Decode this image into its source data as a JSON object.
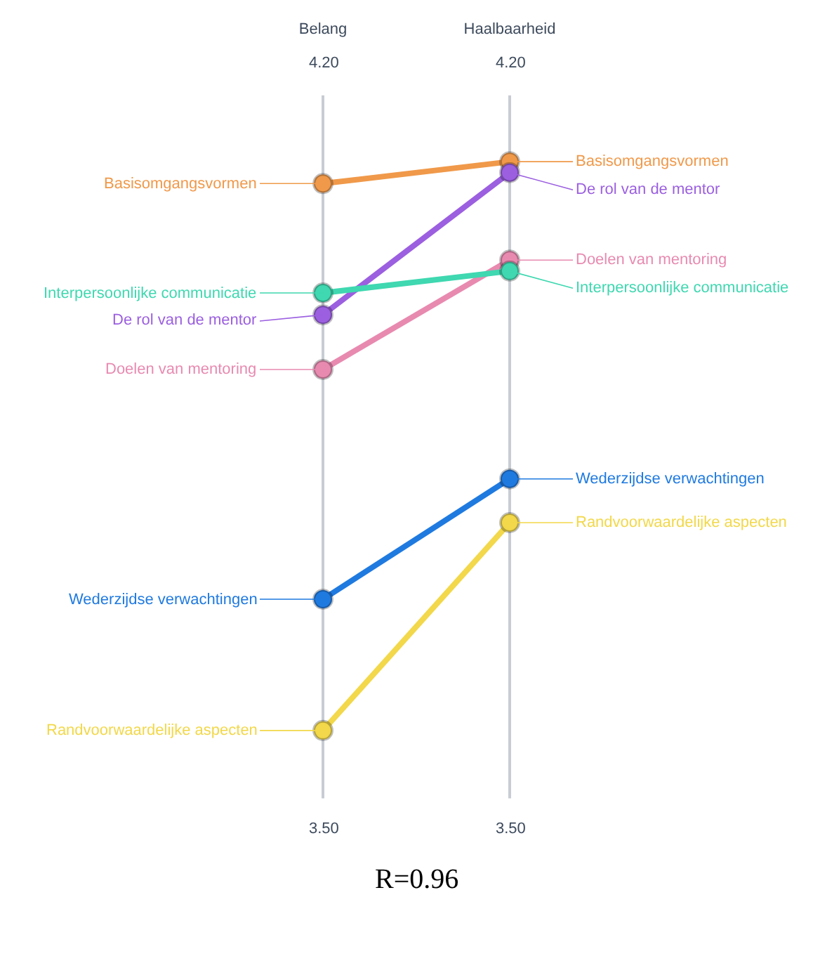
{
  "chart_data": {
    "type": "line",
    "categories": [
      "Belang",
      "Haalbaarheid"
    ],
    "series": [
      {
        "name": "Basisomgangsvormen",
        "color": "#f0994a",
        "values": [
          4.09,
          4.11
        ]
      },
      {
        "name": "De rol van de mentor",
        "color": "#9b5fe0",
        "values": [
          3.97,
          4.1
        ]
      },
      {
        "name": "Doelen van mentoring",
        "color": "#e88ab0",
        "values": [
          3.92,
          4.02
        ]
      },
      {
        "name": "Interpersoonlijke communicatie",
        "color": "#3fd8b0",
        "values": [
          3.99,
          4.01
        ]
      },
      {
        "name": "Wederzijdse verwachtingen",
        "color": "#1f7ae0",
        "values": [
          3.71,
          3.82
        ]
      },
      {
        "name": "Randvoorwaardelijke aspecten",
        "color": "#f2d84a",
        "values": [
          3.59,
          3.78
        ]
      }
    ],
    "ylim": [
      3.5,
      4.2
    ],
    "yticks": [
      {
        "value": 3.5,
        "label": "3.50"
      },
      {
        "value": 4.2,
        "label": "4.20"
      }
    ],
    "marker": "circle",
    "line_style": "solid",
    "grid": "x",
    "legend": "right",
    "annotations": [
      "R=0.96"
    ]
  }
}
